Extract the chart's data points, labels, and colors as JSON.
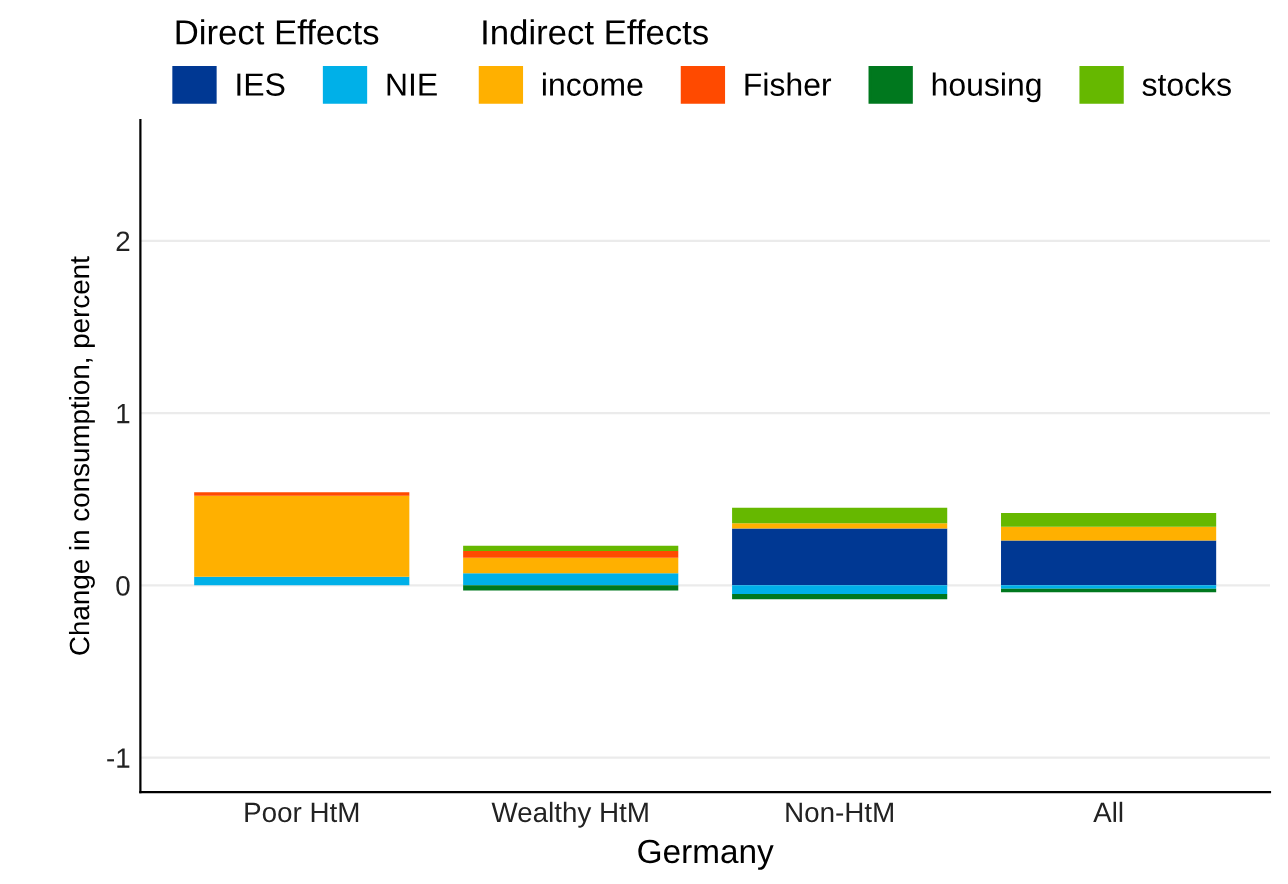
{
  "chart_data": {
    "type": "bar",
    "stacked": true,
    "xlabel": "Germany",
    "ylabel": "Change in consumption, percent",
    "categories": [
      "Poor HtM",
      "Wealthy HtM",
      "Non-HtM",
      "All"
    ],
    "legend_title": [
      "Direct Effects",
      "Indirect Effects"
    ],
    "series": [
      {
        "name": "IES",
        "color": "#003893",
        "values": [
          0,
          0,
          0.33,
          0.26
        ]
      },
      {
        "name": "NIE",
        "color": "#00b0e8",
        "values": [
          0.05,
          0.07,
          -0.05,
          -0.02
        ]
      },
      {
        "name": "income",
        "color": "#ffb000",
        "values": [
          0.47,
          0.09,
          0.03,
          0.08
        ]
      },
      {
        "name": "Fisher",
        "color": "#ff4a00",
        "values": [
          0.02,
          0.04,
          0,
          0
        ]
      },
      {
        "name": "housing",
        "color": "#00781e",
        "values": [
          0,
          -0.03,
          -0.03,
          -0.02
        ]
      },
      {
        "name": "stocks",
        "color": "#66b800",
        "values": [
          0,
          0.03,
          0.09,
          0.08
        ]
      }
    ],
    "ylim": [
      -1.2,
      2.7
    ],
    "yticks": [
      -1,
      0,
      1,
      2
    ],
    "grid": "y",
    "legend": "top"
  }
}
